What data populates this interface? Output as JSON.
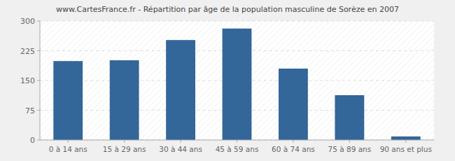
{
  "chart_data": {
    "type": "bar",
    "title": "www.CartesFrance.fr - Répartition par âge de la population masculine de Sorèze en 2007",
    "categories": [
      "0 à 14 ans",
      "15 à 29 ans",
      "30 à 44 ans",
      "45 à 59 ans",
      "60 à 74 ans",
      "75 à 89 ans",
      "90 ans et plus"
    ],
    "values": [
      199,
      201,
      252,
      281,
      180,
      113,
      9
    ],
    "color": "#336699",
    "ylim": [
      0,
      300
    ],
    "yticks": [
      0,
      75,
      150,
      225,
      300
    ],
    "grid": true
  }
}
